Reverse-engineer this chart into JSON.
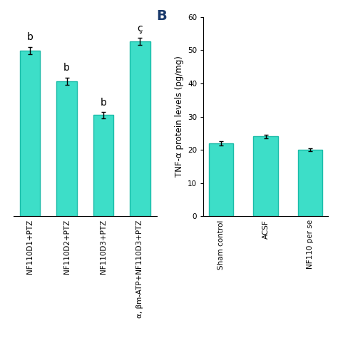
{
  "left_bars": {
    "categories": [
      "NF110D1+PTZ",
      "NF110D2+PTZ",
      "NF110D3+PTZ",
      "α, βm-ATP+NF110D3+PTZ"
    ],
    "values": [
      54,
      44,
      33,
      57
    ],
    "errors": [
      1.2,
      1.2,
      1.0,
      1.2
    ],
    "annotations": [
      "b",
      "b",
      "b",
      "ç"
    ],
    "bar_color": "#3DDEC8",
    "edge_color": "#1ABBA8",
    "ylim": [
      0,
      65
    ]
  },
  "right_bars": {
    "categories": [
      "Sham control",
      "ACSF",
      "NF110 per se"
    ],
    "values": [
      22,
      24,
      20
    ],
    "errors": [
      0.7,
      0.6,
      0.4
    ],
    "bar_color": "#3DDEC8",
    "edge_color": "#1ABBA8",
    "ylabel": "TNF-α protein levels (pg/mg)",
    "ylim": [
      0,
      60
    ],
    "yticks": [
      0,
      10,
      20,
      30,
      40,
      50,
      60
    ],
    "panel_label": "B"
  },
  "bar_width": 0.55,
  "tick_color": "black",
  "label_fontsize": 8.5,
  "annotation_fontsize": 10,
  "panel_label_fontsize": 14,
  "background_color": "#ffffff"
}
